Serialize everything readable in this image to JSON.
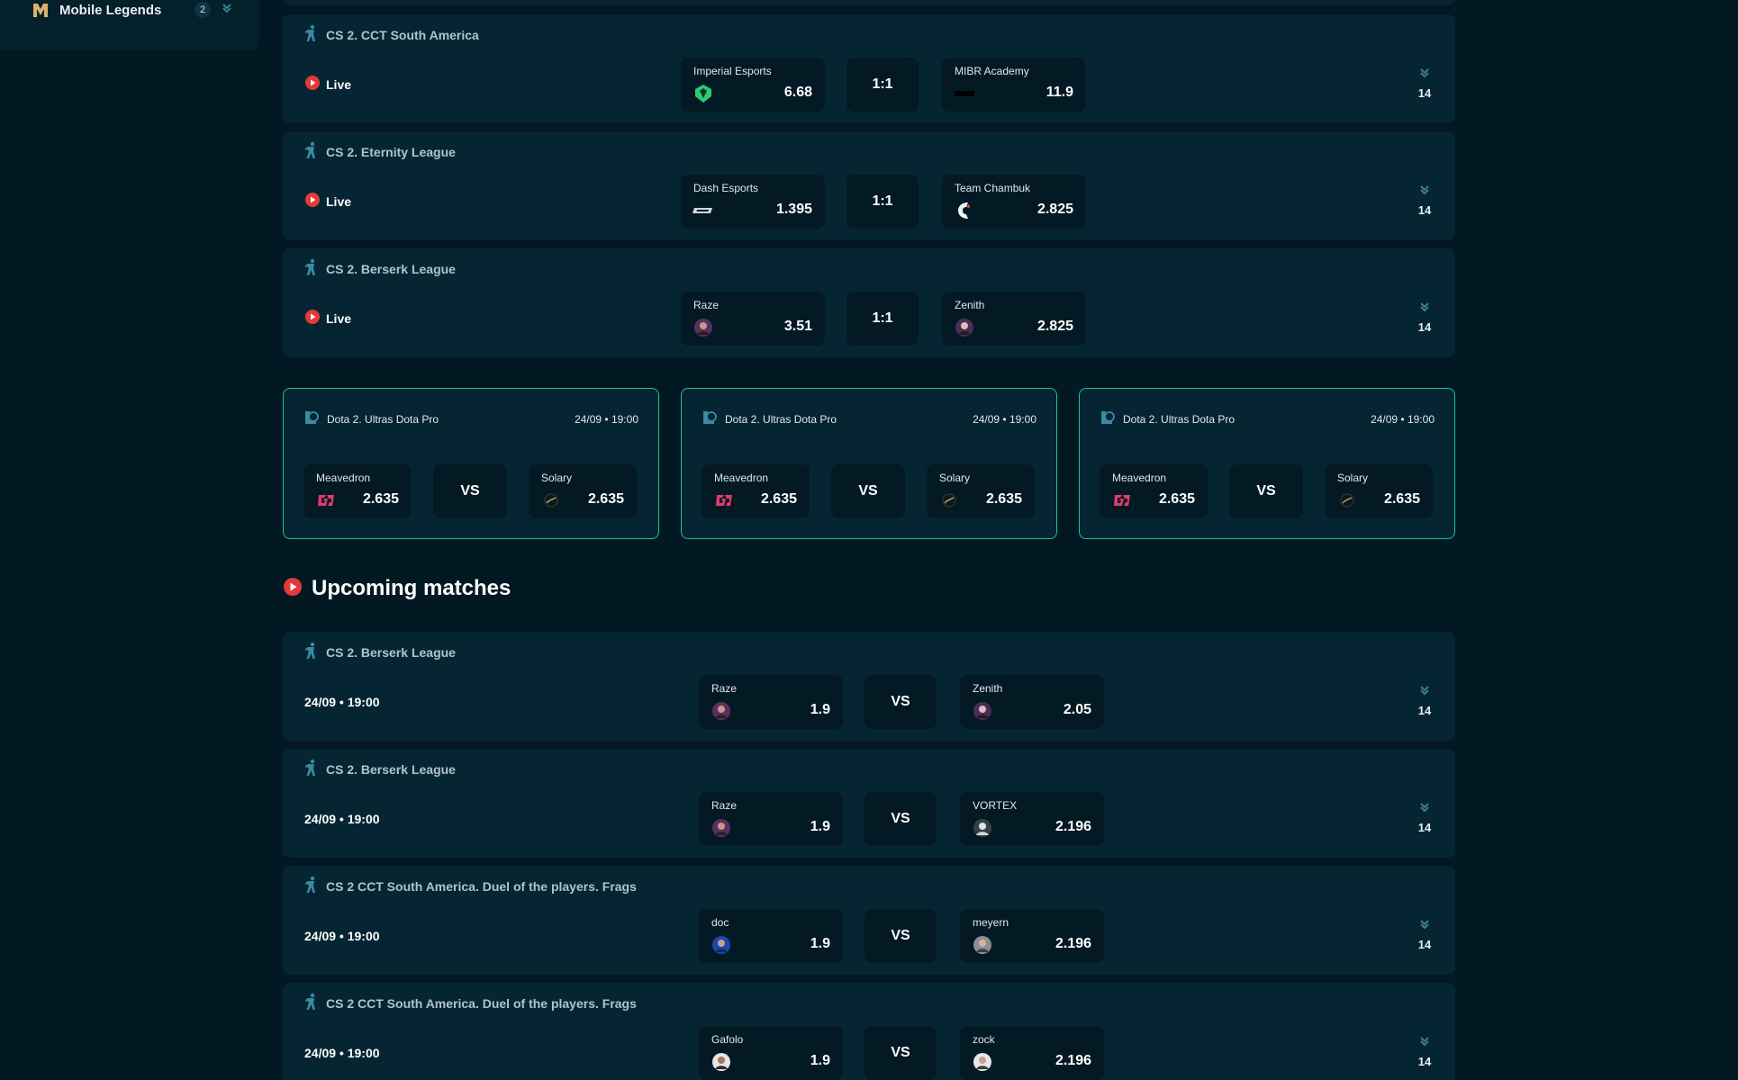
{
  "sidebar": {
    "item_label": "Mobile Legends",
    "item_count": "2"
  },
  "live_matches": [
    {
      "league": "CS 2. CCT South America",
      "status": "Live",
      "team1": "Imperial Esports",
      "odd1": "6.68",
      "score": "1:1",
      "team2": "MIBR Academy",
      "odd2": "11.9",
      "more": "14"
    },
    {
      "league": "CS 2. Eternity League",
      "status": "Live",
      "team1": "Dash Esports",
      "odd1": "1.395",
      "score": "1:1",
      "team2": "Team Chambuk",
      "odd2": "2.825",
      "more": "14"
    },
    {
      "league": "CS 2. Berserk League",
      "status": "Live",
      "team1": "Raze",
      "odd1": "3.51",
      "score": "1:1",
      "team2": "Zenith",
      "odd2": "2.825",
      "more": "14"
    }
  ],
  "featured": [
    {
      "league": "Dota 2. Ultras Dota Pro",
      "date": "24/09 • 19:00",
      "team1": "Meavedron",
      "odd1": "2.635",
      "vs": "VS",
      "team2": "Solary",
      "odd2": "2.635"
    },
    {
      "league": "Dota 2. Ultras Dota Pro",
      "date": "24/09 • 19:00",
      "team1": "Meavedron",
      "odd1": "2.635",
      "vs": "VS",
      "team2": "Solary",
      "odd2": "2.635"
    },
    {
      "league": "Dota 2. Ultras Dota Pro",
      "date": "24/09 • 19:00",
      "team1": "Meavedron",
      "odd1": "2.635",
      "vs": "VS",
      "team2": "Solary",
      "odd2": "2.635"
    }
  ],
  "upcoming_title": "Upcoming matches",
  "upcoming_matches": [
    {
      "league": "CS 2. Berserk League",
      "date": "24/09 • 19:00",
      "team1": "Raze",
      "odd1": "1.9",
      "vs": "VS",
      "team2": "Zenith",
      "odd2": "2.05",
      "more": "14"
    },
    {
      "league": "CS 2. Berserk League",
      "date": "24/09 • 19:00",
      "team1": "Raze",
      "odd1": "1.9",
      "vs": "VS",
      "team2": "VORTEX",
      "odd2": "2.196",
      "more": "14"
    },
    {
      "league": "CS 2 CCT South America. Duel of the players. Frags",
      "date": "24/09 • 19:00",
      "team1": "doc",
      "odd1": "1.9",
      "vs": "VS",
      "team2": "meyern",
      "odd2": "2.196",
      "more": "14"
    },
    {
      "league": "CS 2 CCT South America. Duel of the players. Frags",
      "date": "24/09 • 19:00",
      "team1": "Gafolo",
      "odd1": "1.9",
      "vs": "VS",
      "team2": "zock",
      "odd2": "2.196",
      "more": "14"
    }
  ],
  "colors": {
    "background": "#021822",
    "card": "#062532",
    "tile": "#031a24",
    "accent_green": "#1ec48d",
    "live_red": "#e23a3a",
    "icon_teal": "#3b8aa3"
  },
  "icons": {
    "cs_game": "cs-player-icon",
    "dota_game": "league-shield-icon",
    "live": "play-icon",
    "more": "chevron-down-icon"
  }
}
